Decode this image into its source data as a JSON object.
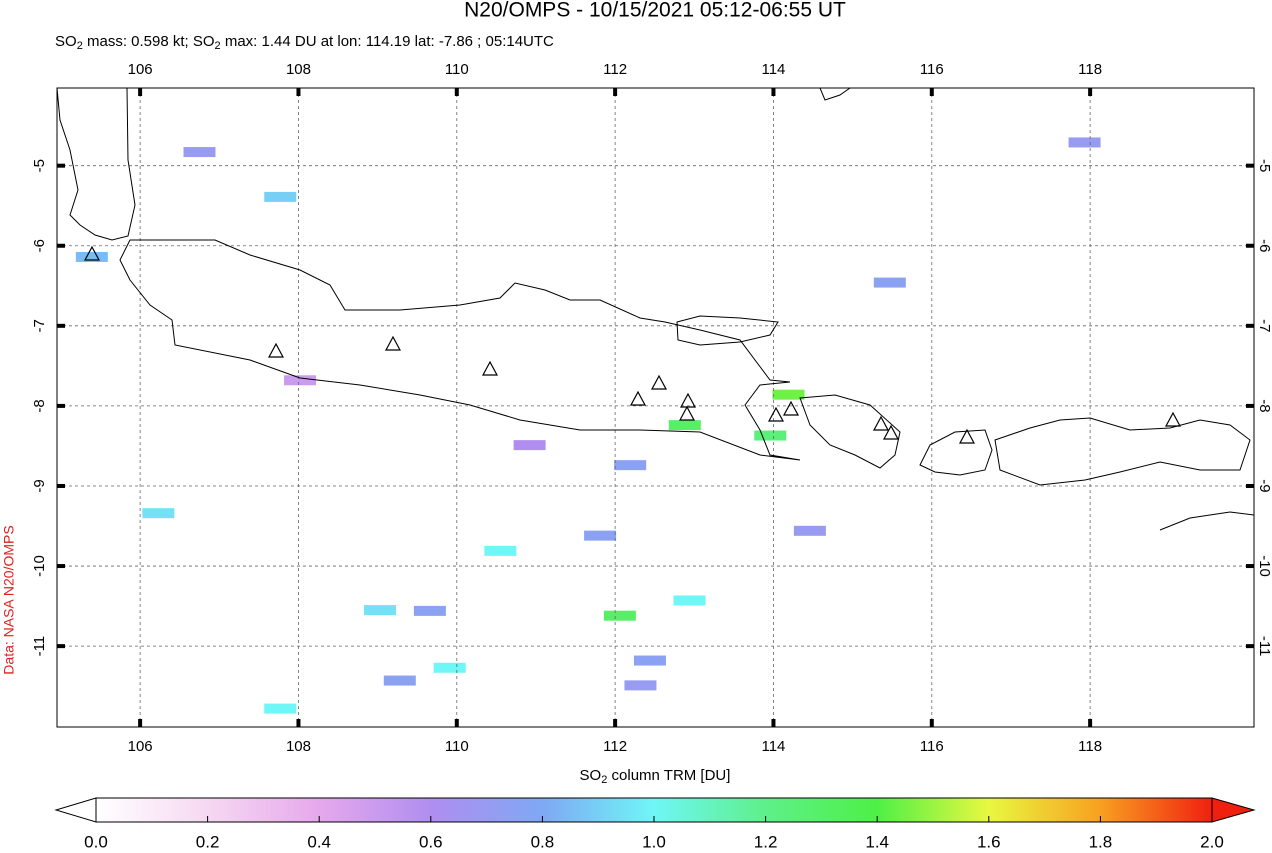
{
  "title": "N20/OMPS - 10/15/2021 05:12-06:55 UT",
  "subtitle": [
    "SO",
    "2",
    " mass: 0.598 kt; SO",
    "2",
    " max: 1.44 DU at lon: 114.19 lat: -7.86 ; 05:14UTC"
  ],
  "credit": "Data: NASA N20/OMPS",
  "colorbar_label": [
    "SO",
    "2",
    " column TRM [DU]"
  ],
  "chart_data": {
    "type": "map",
    "xlim": [
      104.95,
      120.07
    ],
    "ylim": [
      -12.01,
      -4.03
    ],
    "xticks": [
      106,
      108,
      110,
      112,
      114,
      116,
      118
    ],
    "yticks": [
      -5,
      -6,
      -7,
      -8,
      -9,
      -10,
      -11
    ],
    "grid": true,
    "clim": [
      0,
      2
    ],
    "cticks": [
      {
        "value": 0,
        "label": "0.0"
      },
      {
        "value": 0.2,
        "label": "0.2"
      },
      {
        "value": 0.4,
        "label": "0.4"
      },
      {
        "value": 0.6,
        "label": "0.6"
      },
      {
        "value": 0.8,
        "label": "0.8"
      },
      {
        "value": 1,
        "label": "1.0"
      },
      {
        "value": 1.2,
        "label": "1.2"
      },
      {
        "value": 1.4,
        "label": "1.4"
      },
      {
        "value": 1.6,
        "label": "1.6"
      },
      {
        "value": 1.8,
        "label": "1.8"
      },
      {
        "value": 2,
        "label": "2.0"
      }
    ],
    "colormap": [
      {
        "value": 0,
        "color": "#ffffff"
      },
      {
        "value": 0.2,
        "color": "#f6d8f2"
      },
      {
        "value": 0.4,
        "color": "#e6a8ec"
      },
      {
        "value": 0.6,
        "color": "#b08ef0"
      },
      {
        "value": 0.8,
        "color": "#7fa8f4"
      },
      {
        "value": 1,
        "color": "#6ff6f6"
      },
      {
        "value": 1.2,
        "color": "#5ef08a"
      },
      {
        "value": 1.4,
        "color": "#4ef046"
      },
      {
        "value": 1.6,
        "color": "#e8f840"
      },
      {
        "value": 1.8,
        "color": "#f8a020"
      },
      {
        "value": 2,
        "color": "#f02010"
      }
    ],
    "pixels": {
      "lon": [
        114.19,
        112.06,
        112.88,
        113.96,
        110.55,
        112.94,
        109.91,
        109.03,
        107.77,
        106.23,
        105.39,
        112.19,
        111.81,
        114.46,
        106.75,
        109.66,
        112.44,
        112.32,
        115.47,
        117.93,
        109.28,
        107.77,
        110.92,
        108.02
      ],
      "lat": [
        -7.86,
        -10.62,
        -8.24,
        -8.37,
        -9.81,
        -10.43,
        -11.27,
        -10.55,
        -5.39,
        -9.34,
        -6.14,
        -8.74,
        -9.62,
        -9.56,
        -4.83,
        -10.56,
        -11.18,
        -11.49,
        -6.46,
        -4.71,
        -11.43,
        -11.78,
        -8.49,
        -7.68
      ],
      "values": [
        1.44,
        1.3,
        1.3,
        1.25,
        1.0,
        1.0,
        1.0,
        0.95,
        0.9,
        0.95,
        0.85,
        0.75,
        0.75,
        0.7,
        0.7,
        0.75,
        0.75,
        0.7,
        0.75,
        0.7,
        0.75,
        1.0,
        0.6,
        0.5
      ]
    }
  }
}
